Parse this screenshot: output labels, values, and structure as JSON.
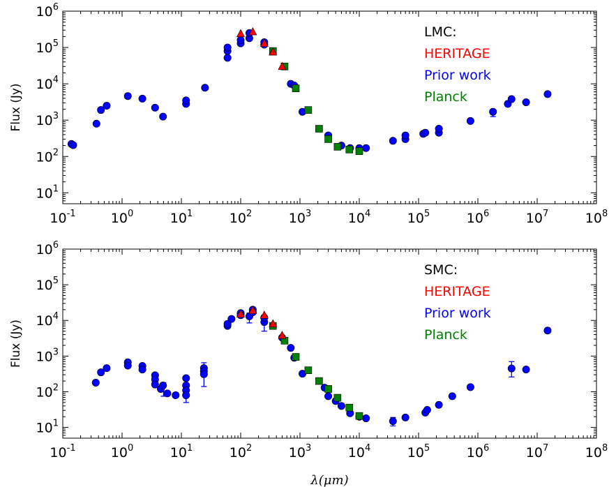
{
  "colors": {
    "heritage": "#ff0000",
    "prior_work": "#0000ff",
    "planck": "#008000",
    "title": "#000000"
  },
  "chart_data": [
    {
      "type": "scatter",
      "panel": "top",
      "legend": {
        "title": "LMC:",
        "placement": "top-right",
        "entries": [
          "HERITAGE",
          "Prior work",
          "Planck"
        ]
      },
      "xlabel": "",
      "ylabel": "Flux  (Jy)",
      "x_scale": "log",
      "y_scale": "log",
      "xlim": [
        0.1,
        100000000
      ],
      "ylim": [
        5,
        1000000
      ],
      "x_ticks": [
        "10^-1",
        "10^0",
        "10^1",
        "10^2",
        "10^3",
        "10^4",
        "10^5",
        "10^6",
        "10^7",
        "10^8"
      ],
      "y_ticks": [
        "10^1",
        "10^2",
        "10^3",
        "10^4",
        "10^5",
        "10^6"
      ],
      "series": [
        {
          "name": "Prior work",
          "marker": "circle",
          "points": [
            [
              0.14,
              220
            ],
            [
              0.15,
              205
            ],
            [
              0.37,
              800
            ],
            [
              0.44,
              1900
            ],
            [
              0.55,
              2500
            ],
            [
              1.25,
              4600
            ],
            [
              2.2,
              3900
            ],
            [
              3.6,
              2200
            ],
            [
              4.9,
              1250
            ],
            [
              12,
              2800
            ],
            [
              12,
              3500
            ],
            [
              25,
              7800
            ],
            [
              60,
              52000
            ],
            [
              60,
              80000
            ],
            [
              60,
              100000
            ],
            [
              100,
              130000
            ],
            [
              100,
              160000
            ],
            [
              140,
              180000
            ],
            [
              140,
              250000
            ],
            [
              250,
              120000
            ],
            [
              250,
              140000
            ],
            [
              700,
              10000
            ],
            [
              800,
              9000
            ],
            [
              1100,
              1700
            ],
            [
              3000,
              380
            ],
            [
              5000,
              200
            ],
            [
              7000,
              170
            ],
            [
              10000,
              170
            ],
            [
              13000,
              170
            ],
            [
              37000,
              270
            ],
            [
              60000,
              300
            ],
            [
              60000,
              380
            ],
            [
              120000,
              420
            ],
            [
              130000,
              450
            ],
            [
              220000,
              450
            ],
            [
              220000,
              580
            ],
            [
              750000,
              950
            ],
            [
              1800000,
              1700
            ],
            [
              3200000,
              2800
            ],
            [
              3700000,
              3800
            ],
            [
              6500000,
              3100
            ],
            [
              15000000,
              5200
            ]
          ],
          "error_bars": [
            [
              0.15,
              190,
              225
            ],
            [
              1800000,
              1250,
              1900
            ],
            [
              3200000,
              2400,
              3300
            ],
            [
              15000000,
              4500,
              6000
            ]
          ]
        },
        {
          "name": "HERITAGE",
          "marker": "triangle",
          "points": [
            [
              100,
              240000
            ],
            [
              160,
              270000
            ],
            [
              250,
              130000
            ],
            [
              350,
              75000
            ],
            [
              500,
              30000
            ]
          ]
        },
        {
          "name": "Planck",
          "marker": "square",
          "points": [
            [
              350,
              80000
            ],
            [
              550,
              30000
            ],
            [
              850,
              7500
            ],
            [
              1380,
              1900
            ],
            [
              2100,
              580
            ],
            [
              3000,
              300
            ],
            [
              4300,
              185
            ],
            [
              6800,
              155
            ],
            [
              10000,
              140
            ]
          ]
        }
      ]
    },
    {
      "type": "scatter",
      "panel": "bottom",
      "legend": {
        "title": "SMC:",
        "placement": "top-right",
        "entries": [
          "HERITAGE",
          "Prior work",
          "Planck"
        ]
      },
      "xlabel": "λ(μm)",
      "ylabel": "Flux  (Jy)",
      "x_scale": "log",
      "y_scale": "log",
      "xlim": [
        0.1,
        100000000
      ],
      "ylim": [
        5,
        1000000
      ],
      "x_ticks": [
        "10^-1",
        "10^0",
        "10^1",
        "10^2",
        "10^3",
        "10^4",
        "10^5",
        "10^6",
        "10^7",
        "10^8"
      ],
      "y_ticks": [
        "10^1",
        "10^2",
        "10^3",
        "10^4",
        "10^5",
        "10^6"
      ],
      "series": [
        {
          "name": "Prior work",
          "marker": "circle",
          "points": [
            [
              0.36,
              180
            ],
            [
              0.44,
              350
            ],
            [
              0.55,
              460
            ],
            [
              1.25,
              670
            ],
            [
              1.25,
              540
            ],
            [
              2.2,
              530
            ],
            [
              2.2,
              420
            ],
            [
              3.6,
              290
            ],
            [
              3.6,
              220
            ],
            [
              3.6,
              160
            ],
            [
              4.5,
              120
            ],
            [
              4.9,
              150
            ],
            [
              5.8,
              90
            ],
            [
              8,
              80
            ],
            [
              12,
              240
            ],
            [
              12,
              150
            ],
            [
              12,
              110
            ],
            [
              12,
              80
            ],
            [
              24,
              460
            ],
            [
              24,
              380
            ],
            [
              24,
              310
            ],
            [
              60,
              7000
            ],
            [
              60,
              8000
            ],
            [
              70,
              11000
            ],
            [
              100,
              16000
            ],
            [
              100,
              14000
            ],
            [
              140,
              13000
            ],
            [
              160,
              20000
            ],
            [
              160,
              17000
            ],
            [
              250,
              9000
            ],
            [
              250,
              12000
            ],
            [
              500,
              3300
            ],
            [
              700,
              1700
            ],
            [
              800,
              900
            ],
            [
              1100,
              320
            ],
            [
              2600,
              130
            ],
            [
              3000,
              75
            ],
            [
              4000,
              55
            ],
            [
              5000,
              40
            ],
            [
              7000,
              25
            ],
            [
              10000,
              20
            ],
            [
              13000,
              18
            ],
            [
              37000,
              15
            ],
            [
              60000,
              19
            ],
            [
              130000,
              26
            ],
            [
              140000,
              31
            ],
            [
              220000,
              43
            ],
            [
              370000,
              75
            ],
            [
              750000,
              135
            ],
            [
              3700000,
              450
            ],
            [
              6500000,
              420
            ],
            [
              15000000,
              5200
            ]
          ],
          "error_bars": [
            [
              5,
              75,
              180
            ],
            [
              12,
              50,
              250
            ],
            [
              24,
              140,
              650
            ],
            [
              140,
              8500,
              16000
            ],
            [
              250,
              5000,
              13000
            ],
            [
              37000,
              11,
              19
            ],
            [
              3700000,
              260,
              700
            ],
            [
              15000000,
              4500,
              6000
            ]
          ]
        },
        {
          "name": "HERITAGE",
          "marker": "triangle",
          "points": [
            [
              100,
              15000
            ],
            [
              160,
              19000
            ],
            [
              250,
              14000
            ],
            [
              350,
              8000
            ],
            [
              500,
              3800
            ]
          ]
        },
        {
          "name": "Planck",
          "marker": "square",
          "points": [
            [
              350,
              7000
            ],
            [
              550,
              2700
            ],
            [
              850,
              950
            ],
            [
              1380,
              400
            ],
            [
              2100,
              200
            ],
            [
              3000,
              120
            ],
            [
              4300,
              68
            ],
            [
              6800,
              36
            ],
            [
              10000,
              21
            ]
          ]
        }
      ]
    }
  ]
}
